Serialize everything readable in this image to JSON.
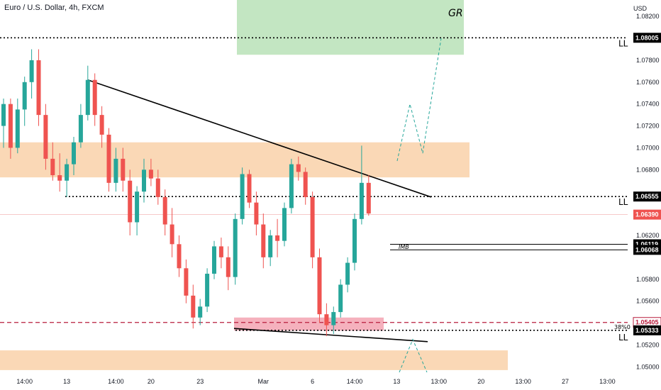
{
  "title": "Euro / U.S. Dollar, 4h, FXCM",
  "currency": "USD",
  "colors": {
    "up": "#26a69a",
    "down": "#ef5350",
    "supply_zone": "#f9d1a9",
    "target_zone": "#b8e2b7",
    "demand_zone": "#f3a3b1",
    "price_tag": "#ef5350",
    "level_tag": "#000000"
  },
  "chart_data": {
    "type": "candlestick",
    "timeframe": "4h",
    "yaxis": {
      "ticks": [
        1.082,
        1.078,
        1.076,
        1.074,
        1.072,
        1.07,
        1.068,
        1.062,
        1.058,
        1.056,
        1.052,
        1.05
      ],
      "ylim": [
        1.0495,
        1.0835
      ]
    },
    "xaxis": {
      "ticks": [
        {
          "label": "14:00",
          "bar": 3
        },
        {
          "label": "13",
          "bar": 9
        },
        {
          "label": "14:00",
          "bar": 16
        },
        {
          "label": "20",
          "bar": 21
        },
        {
          "label": "23",
          "bar": 28
        },
        {
          "label": "Mar",
          "bar": 37
        },
        {
          "label": "6",
          "bar": 44
        },
        {
          "label": "14:00",
          "bar": 50
        },
        {
          "label": "13",
          "bar": 56
        },
        {
          "label": "13:00",
          "bar": 62
        },
        {
          "label": "20",
          "bar": 68
        },
        {
          "label": "13:00",
          "bar": 74
        },
        {
          "label": "27",
          "bar": 80
        },
        {
          "label": "13:00",
          "bar": 86
        }
      ]
    },
    "candles": [
      [
        1.072,
        1.0745,
        1.07,
        1.074
      ],
      [
        1.074,
        1.0745,
        1.069,
        1.07
      ],
      [
        1.07,
        1.0745,
        1.0695,
        1.0735
      ],
      [
        1.0735,
        1.0765,
        1.072,
        1.076
      ],
      [
        1.076,
        1.079,
        1.0745,
        1.078
      ],
      [
        1.078,
        1.079,
        1.072,
        1.073
      ],
      [
        1.073,
        1.074,
        1.068,
        1.069
      ],
      [
        1.069,
        1.0705,
        1.067,
        1.0675
      ],
      [
        1.0675,
        1.0695,
        1.066,
        1.067
      ],
      [
        1.067,
        1.069,
        1.0655,
        1.0685
      ],
      [
        1.0685,
        1.071,
        1.0675,
        1.0705
      ],
      [
        1.0705,
        1.074,
        1.07,
        1.073
      ],
      [
        1.073,
        1.0775,
        1.0725,
        1.0762
      ],
      [
        1.0762,
        1.0768,
        1.072,
        1.073
      ],
      [
        1.073,
        1.0738,
        1.07,
        1.0712
      ],
      [
        1.0712,
        1.0718,
        1.066,
        1.0668
      ],
      [
        1.0668,
        1.07,
        1.066,
        1.069
      ],
      [
        1.069,
        1.07,
        1.066,
        1.067
      ],
      [
        1.067,
        1.068,
        1.062,
        1.0632
      ],
      [
        1.0632,
        1.0665,
        1.062,
        1.066
      ],
      [
        1.066,
        1.069,
        1.065,
        1.068
      ],
      [
        1.068,
        1.069,
        1.0665,
        1.0672
      ],
      [
        1.0672,
        1.068,
        1.0648,
        1.0655
      ],
      [
        1.0655,
        1.0662,
        1.062,
        1.063
      ],
      [
        1.063,
        1.0645,
        1.06,
        1.0612
      ],
      [
        1.0612,
        1.062,
        1.0582,
        1.059
      ],
      [
        1.059,
        1.0598,
        1.0558,
        1.0565
      ],
      [
        1.0565,
        1.0575,
        1.0535,
        1.0545
      ],
      [
        1.0545,
        1.0562,
        1.0538,
        1.0555
      ],
      [
        1.0555,
        1.059,
        1.055,
        1.0585
      ],
      [
        1.0585,
        1.0615,
        1.058,
        1.061
      ],
      [
        1.061,
        1.0618,
        1.059,
        1.06
      ],
      [
        1.06,
        1.061,
        1.057,
        1.0582
      ],
      [
        1.0582,
        1.064,
        1.0575,
        1.0635
      ],
      [
        1.0635,
        1.0682,
        1.063,
        1.0676
      ],
      [
        1.0676,
        1.068,
        1.0645,
        1.065
      ],
      [
        1.065,
        1.066,
        1.062,
        1.063
      ],
      [
        1.063,
        1.064,
        1.059,
        1.06
      ],
      [
        1.06,
        1.0625,
        1.0592,
        1.062
      ],
      [
        1.062,
        1.0635,
        1.06,
        1.0615
      ],
      [
        1.0615,
        1.065,
        1.061,
        1.0645
      ],
      [
        1.0645,
        1.069,
        1.064,
        1.0685
      ],
      [
        1.0685,
        1.0692,
        1.067,
        1.0678
      ],
      [
        1.0678,
        1.0682,
        1.0648,
        1.0655
      ],
      [
        1.0655,
        1.066,
        1.059,
        1.06
      ],
      [
        1.06,
        1.0608,
        1.054,
        1.0548
      ],
      [
        1.0548,
        1.0558,
        1.0528,
        1.0538
      ],
      [
        1.0538,
        1.0555,
        1.053,
        1.055
      ],
      [
        1.055,
        1.058,
        1.0545,
        1.0575
      ],
      [
        1.0575,
        1.06,
        1.0568,
        1.0595
      ],
      [
        1.0595,
        1.064,
        1.0588,
        1.0635
      ],
      [
        1.0635,
        1.0702,
        1.063,
        1.0668
      ],
      [
        1.0668,
        1.0675,
        1.0638,
        1.064
      ]
    ],
    "horizontal_levels": [
      {
        "price": 1.08005,
        "label": "1.08005",
        "style": "dotted",
        "tag": "dark"
      },
      {
        "price": 1.06555,
        "label": "1.06555",
        "style": "dotted",
        "tag": "dark"
      },
      {
        "price": 1.06119,
        "label": "1.06119",
        "style": "solid",
        "tag": "dark"
      },
      {
        "price": 1.06068,
        "label": "1.06068",
        "style": "solid",
        "tag": "dark"
      },
      {
        "price": 1.05405,
        "label": "1.05405",
        "style": "dashed-red",
        "tag": "outline-red"
      },
      {
        "price": 1.05333,
        "label": "1.05333",
        "style": "dotted",
        "tag": "dark"
      },
      {
        "price": 1.0639,
        "label": "1.06390",
        "style": "current",
        "tag": "red"
      }
    ],
    "zones": [
      {
        "name": "target",
        "label": "GR",
        "price_top": 1.0835,
        "price_bottom": 1.0785
      },
      {
        "name": "supply",
        "price_top": 1.0705,
        "price_bottom": 1.0673
      },
      {
        "name": "demand",
        "price_top": 1.0545,
        "price_bottom": 1.0533
      },
      {
        "name": "lower-supply",
        "price_top": 1.0515,
        "price_bottom": 1.0497
      }
    ],
    "annotations": {
      "ll_labels": [
        "LL",
        "LL",
        "LL"
      ],
      "imb_label": "IMB",
      "fib_label": "38%0",
      "target_label": "GR"
    }
  }
}
